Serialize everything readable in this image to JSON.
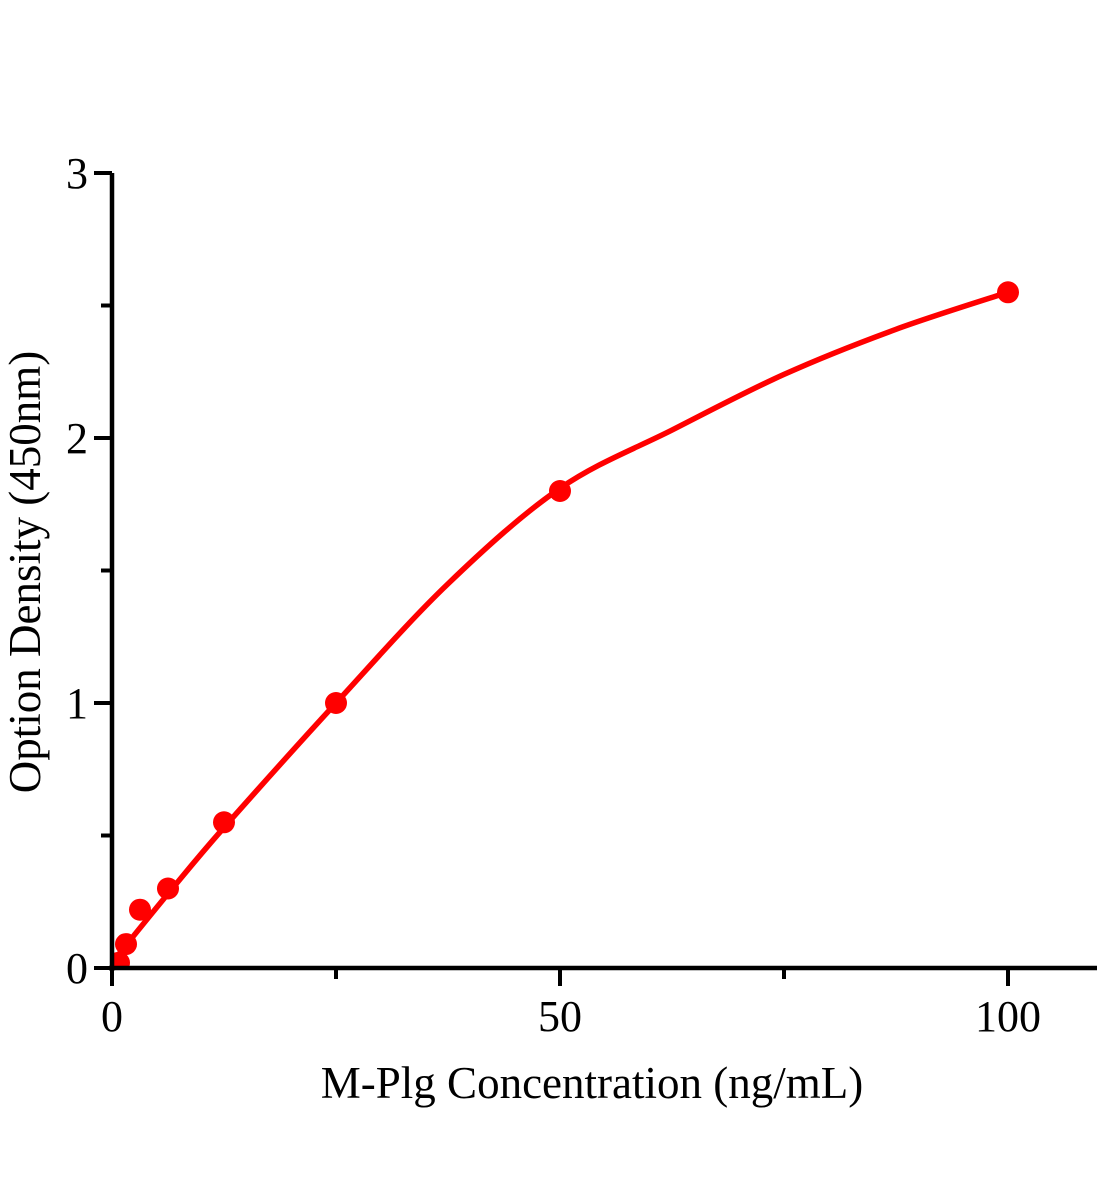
{
  "figure": {
    "background_color": "#ffffff",
    "title": ""
  },
  "chart_data": {
    "type": "scatter",
    "title": "",
    "xlabel": "M-Plg Concentration（ng/mL）",
    "ylabel": "Option Density（450nm）",
    "x": [
      0.78,
      1.56,
      3.125,
      6.25,
      12.5,
      25,
      50,
      100
    ],
    "y": [
      0.02,
      0.09,
      0.22,
      0.3,
      0.55,
      1.0,
      1.8,
      2.55
    ],
    "fit_curve": {
      "x": [
        0,
        6.25,
        12.5,
        25,
        37.5,
        50,
        62.5,
        75,
        87.5,
        100
      ],
      "y": [
        0.02,
        0.28,
        0.53,
        1.0,
        1.45,
        1.81,
        2.03,
        2.24,
        2.41,
        2.55
      ]
    },
    "xlim": [
      0,
      110
    ],
    "ylim": [
      0,
      3
    ],
    "x_major_ticks": [
      0,
      50,
      100
    ],
    "x_tick_labels": [
      "0",
      "50",
      "100"
    ],
    "x_minor_ticks": [
      25,
      75
    ],
    "y_major_ticks": [
      0,
      1,
      2,
      3
    ],
    "y_tick_labels": [
      "0",
      "1",
      "2",
      "3"
    ],
    "y_minor_ticks": [
      0.5,
      1.5,
      2.5
    ],
    "grid": false,
    "legend": null,
    "line_color": "#ff0000",
    "marker_color": "#ff0000",
    "axis_color": "#000000"
  }
}
